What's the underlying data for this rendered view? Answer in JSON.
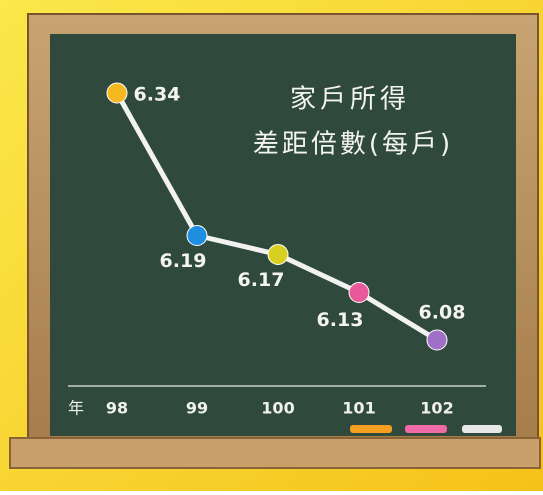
{
  "chart_data": {
    "type": "line",
    "title": "家戶所得",
    "subtitle": "差距倍數(每戶)",
    "x_label": "年",
    "categories": [
      "98",
      "99",
      "100",
      "101",
      "102"
    ],
    "values": [
      6.34,
      6.19,
      6.17,
      6.13,
      6.08
    ],
    "color": "#f2f2f2",
    "point_colors": [
      "#f5b820",
      "#1e8fe0",
      "#d8d020",
      "#e85a9a",
      "#a070c8"
    ]
  }
}
